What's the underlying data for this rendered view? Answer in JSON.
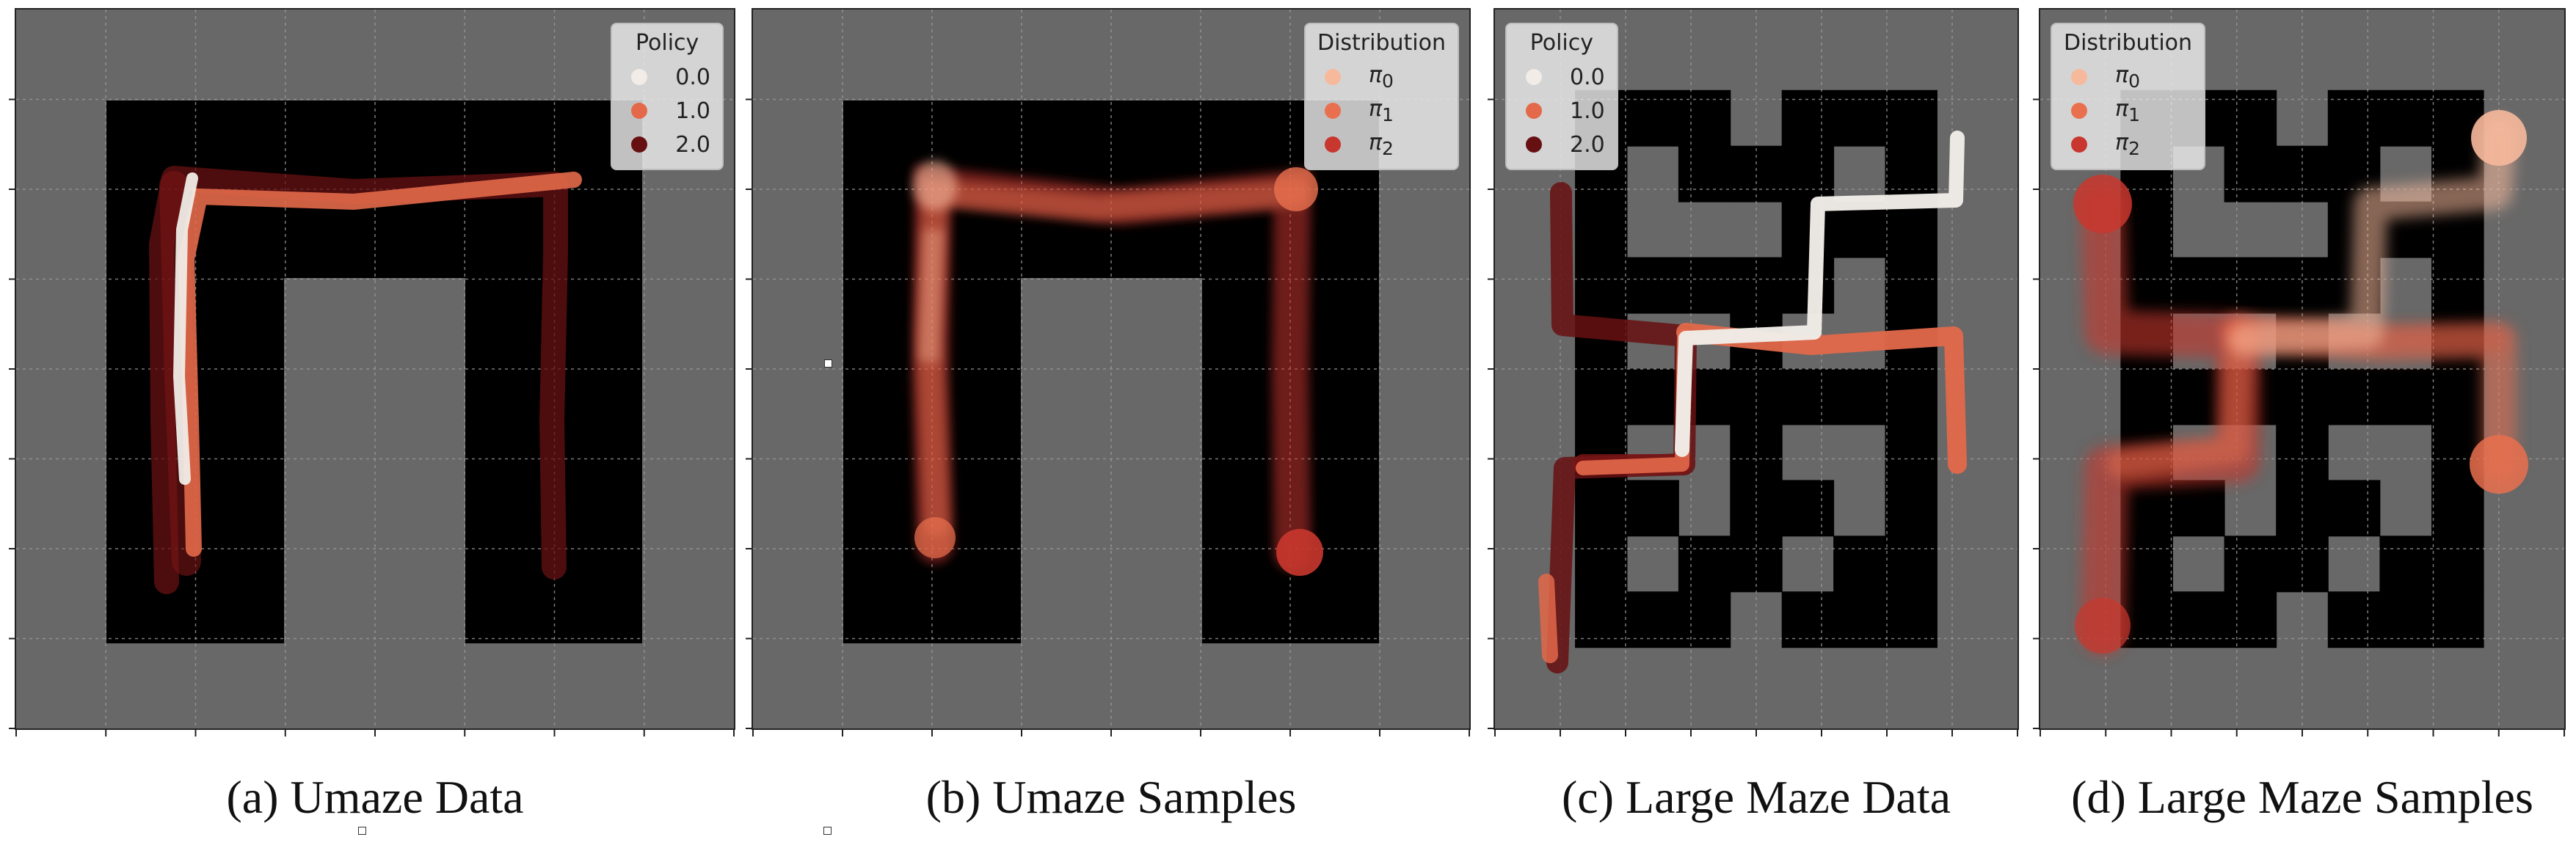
{
  "panels": [
    {
      "caption": "(a) Umaze Data",
      "legend": {
        "title": "Policy",
        "entries": [
          {
            "label": "0.0",
            "color": "#f1ece7"
          },
          {
            "label": "1.0",
            "color": "#e3694a"
          },
          {
            "label": "2.0",
            "color": "#671012"
          }
        ]
      }
    },
    {
      "caption": "(b) Umaze Samples",
      "legend": {
        "title": "Distribution",
        "entries": [
          {
            "label": "π",
            "sub": "0",
            "color": "#f7b99c"
          },
          {
            "label": "π",
            "sub": "1",
            "color": "#e9704f"
          },
          {
            "label": "π",
            "sub": "2",
            "color": "#c8372e"
          }
        ]
      }
    },
    {
      "caption": "(c) Large Maze Data",
      "legend": {
        "title": "Policy",
        "entries": [
          {
            "label": "0.0",
            "color": "#f1ece7"
          },
          {
            "label": "1.0",
            "color": "#e3694a"
          },
          {
            "label": "2.0",
            "color": "#671012"
          }
        ]
      }
    },
    {
      "caption": "(d) Large Maze Samples",
      "legend": {
        "title": "Distribution",
        "entries": [
          {
            "label": "π",
            "sub": "0",
            "color": "#f7b99c"
          },
          {
            "label": "π",
            "sub": "1",
            "color": "#e9704f"
          },
          {
            "label": "π",
            "sub": "2",
            "color": "#c8372e"
          }
        ]
      }
    }
  ],
  "chart_data": [
    {
      "type": "scatter",
      "title": "",
      "legend_title": "Policy",
      "series": [
        {
          "name": "0.0"
        },
        {
          "name": "1.0"
        },
        {
          "name": "2.0"
        }
      ],
      "grid": true,
      "legend_placement": "top-right",
      "environment": "Umaze"
    },
    {
      "type": "scatter",
      "title": "",
      "legend_title": "Distribution",
      "series": [
        {
          "name": "π0"
        },
        {
          "name": "π1"
        },
        {
          "name": "π2"
        }
      ],
      "grid": true,
      "legend_placement": "top-right",
      "environment": "Umaze"
    },
    {
      "type": "scatter",
      "title": "",
      "legend_title": "Policy",
      "series": [
        {
          "name": "0.0"
        },
        {
          "name": "1.0"
        },
        {
          "name": "2.0"
        }
      ],
      "grid": true,
      "legend_placement": "top-left",
      "environment": "Large Maze"
    },
    {
      "type": "scatter",
      "title": "",
      "legend_title": "Distribution",
      "series": [
        {
          "name": "π0"
        },
        {
          "name": "π1"
        },
        {
          "name": "π2"
        }
      ],
      "grid": true,
      "legend_placement": "top-left",
      "environment": "Large Maze"
    }
  ]
}
